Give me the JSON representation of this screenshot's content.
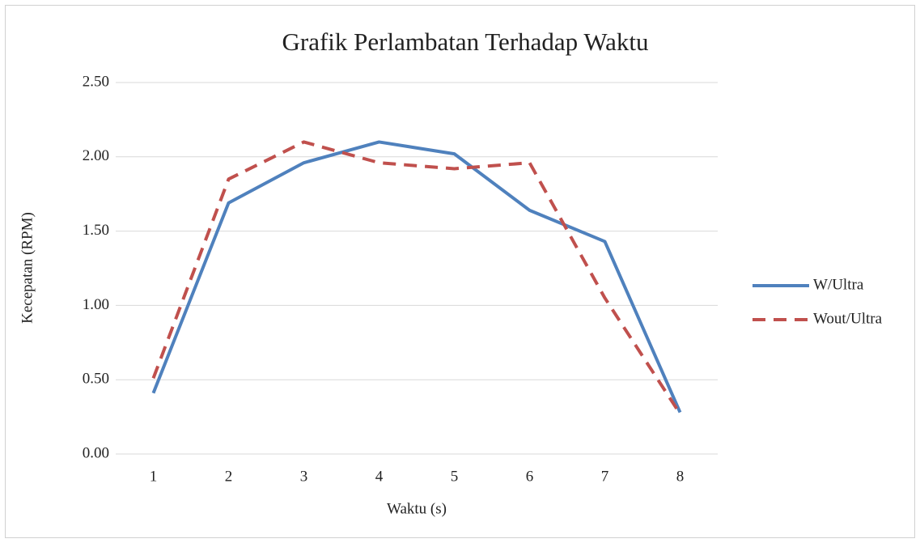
{
  "chart_data": {
    "type": "line",
    "title": "Grafik Perlambatan Terhadap Waktu",
    "x_label": "Waktu (s)",
    "y_label": "Kecepatan (RPM)",
    "categories": [
      "1",
      "2",
      "3",
      "4",
      "5",
      "6",
      "7",
      "8"
    ],
    "series": [
      {
        "name": "W/Ultra",
        "color": "#4f81bd",
        "dash": "solid",
        "values": [
          0.41,
          1.69,
          1.96,
          2.1,
          2.02,
          1.64,
          1.43,
          0.28
        ]
      },
      {
        "name": "Wout/Ultra",
        "color": "#c0504d",
        "dash": "dashed",
        "values": [
          0.51,
          1.85,
          2.1,
          1.96,
          1.92,
          1.96,
          1.05,
          0.27
        ]
      }
    ],
    "ylim": [
      0,
      2.5
    ],
    "yticks": [
      {
        "value": 0,
        "label": "0.00"
      },
      {
        "value": 0.5,
        "label": "0.50"
      },
      {
        "value": 1,
        "label": "1.00"
      },
      {
        "value": 1.5,
        "label": "1.50"
      },
      {
        "value": 2,
        "label": "2.00"
      },
      {
        "value": 2.5,
        "label": "2.50"
      }
    ],
    "grid": true,
    "legend": "right"
  }
}
